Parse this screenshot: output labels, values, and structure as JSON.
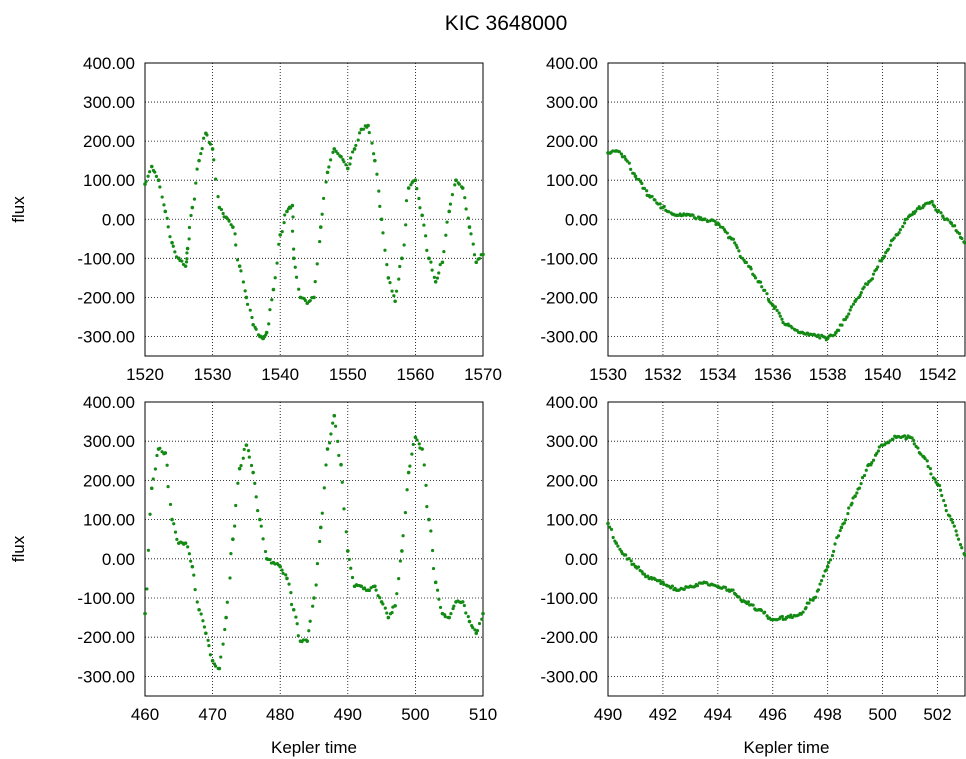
{
  "title": "KIC 3648000",
  "colors": {
    "series": "#138a13",
    "axis": "#000000",
    "background": "#ffffff"
  },
  "chart_data": [
    {
      "type": "scatter",
      "panel": "top-left",
      "xlabel": "",
      "ylabel": "flux",
      "xlim": [
        1520,
        1570
      ],
      "ylim": [
        -350,
        400
      ],
      "grid": true,
      "xticks": [
        1520,
        1530,
        1540,
        1550,
        1560,
        1570
      ],
      "xtick_labels": [
        "1520",
        "1530",
        "1540",
        "1550",
        "1560",
        "1570"
      ],
      "yticks": [
        -300,
        -200,
        -100,
        0,
        100,
        200,
        300,
        400
      ],
      "ytick_labels": [
        "-300.00",
        "-200.00",
        "-100.00",
        "0.00",
        "100.00",
        "200.00",
        "300.00",
        "400.00"
      ],
      "series": [
        {
          "color": "#138a13",
          "x": [
            1520,
            1521,
            1522,
            1523,
            1524,
            1525,
            1526,
            1526.3,
            1527,
            1528,
            1529,
            1530,
            1531,
            1532,
            1533,
            1534,
            1535,
            1536,
            1537,
            1537.5,
            1538,
            1539,
            1540,
            1541,
            1541.8,
            1542,
            1543,
            1544,
            1545,
            1546,
            1547,
            1548,
            1549,
            1550,
            1551,
            1552,
            1553,
            1554,
            1555,
            1556,
            1557,
            1558,
            1559,
            1560,
            1561,
            1562,
            1563,
            1564,
            1565,
            1566,
            1567,
            1568,
            1569,
            1570
          ],
          "y": [
            90,
            135,
            100,
            20,
            -60,
            -100,
            -120,
            -75,
            30,
            150,
            220,
            180,
            30,
            5,
            -20,
            -120,
            -200,
            -270,
            -300,
            -305,
            -290,
            -180,
            -40,
            20,
            35,
            -100,
            -200,
            -215,
            -200,
            -20,
            120,
            180,
            160,
            130,
            180,
            230,
            240,
            150,
            0,
            -150,
            -210,
            -100,
            80,
            100,
            10,
            -100,
            -160,
            -110,
            20,
            100,
            80,
            -20,
            -110,
            -90
          ]
        }
      ]
    },
    {
      "type": "scatter",
      "panel": "top-right",
      "xlabel": "",
      "ylabel": "",
      "xlim": [
        1530,
        1543
      ],
      "ylim": [
        -350,
        400
      ],
      "grid": true,
      "xticks": [
        1530,
        1532,
        1534,
        1536,
        1538,
        1540,
        1542
      ],
      "xtick_labels": [
        "1530",
        "1532",
        "1534",
        "1536",
        "1538",
        "1540",
        "1542"
      ],
      "yticks": [
        -300,
        -200,
        -100,
        0,
        100,
        200,
        300,
        400
      ],
      "ytick_labels": [
        "-300.00",
        "-200.00",
        "-100.00",
        "0.00",
        "100.00",
        "200.00",
        "300.00",
        "400.00"
      ],
      "series": [
        {
          "color": "#138a13",
          "x": [
            1530,
            1530.3,
            1530.6,
            1531,
            1531.5,
            1532,
            1532.5,
            1533,
            1533.5,
            1534,
            1534.5,
            1535,
            1535.5,
            1536,
            1536.5,
            1537,
            1537.5,
            1538,
            1538.3,
            1538.7,
            1539,
            1539.5,
            1540,
            1540.5,
            1541,
            1541.5,
            1541.8,
            1542,
            1542.5,
            1543
          ],
          "y": [
            170,
            175,
            160,
            110,
            60,
            30,
            10,
            10,
            0,
            -10,
            -50,
            -110,
            -160,
            -220,
            -270,
            -290,
            -295,
            -305,
            -290,
            -250,
            -210,
            -160,
            -100,
            -40,
            10,
            35,
            45,
            20,
            -10,
            -60
          ]
        }
      ]
    },
    {
      "type": "scatter",
      "panel": "bottom-left",
      "xlabel": "Kepler time",
      "ylabel": "flux",
      "xlim": [
        460,
        510
      ],
      "ylim": [
        -350,
        400
      ],
      "grid": true,
      "xticks": [
        460,
        470,
        480,
        490,
        500,
        510
      ],
      "xtick_labels": [
        "460",
        "470",
        "480",
        "490",
        "500",
        "510"
      ],
      "yticks": [
        -300,
        -200,
        -100,
        0,
        100,
        200,
        300,
        400
      ],
      "ytick_labels": [
        "-300.00",
        "-200.00",
        "-100.00",
        "0.00",
        "100.00",
        "200.00",
        "300.00",
        "400.00"
      ],
      "series": [
        {
          "color": "#138a13",
          "x": [
            460,
            461,
            462,
            463,
            464,
            465,
            466,
            467,
            468,
            469,
            470,
            471,
            472,
            473,
            474,
            475,
            476,
            477,
            478,
            479,
            480,
            481,
            482,
            483,
            484,
            485,
            486,
            487,
            488,
            489,
            490,
            491,
            492,
            493,
            494,
            495,
            496,
            497,
            498,
            499,
            500,
            501,
            502,
            503,
            504,
            505,
            506,
            507,
            508,
            509,
            510
          ],
          "y": [
            -140,
            180,
            280,
            270,
            100,
            40,
            40,
            -20,
            -130,
            -190,
            -260,
            -280,
            -150,
            50,
            230,
            290,
            220,
            100,
            0,
            -10,
            -20,
            -50,
            -130,
            -210,
            -210,
            -100,
            80,
            280,
            365,
            240,
            20,
            -70,
            -70,
            -80,
            -70,
            -110,
            -150,
            -120,
            20,
            220,
            310,
            280,
            100,
            -60,
            -140,
            -150,
            -110,
            -110,
            -160,
            -190,
            -140
          ]
        }
      ]
    },
    {
      "type": "scatter",
      "panel": "bottom-right",
      "xlabel": "Kepler time",
      "ylabel": "",
      "xlim": [
        490,
        503
      ],
      "ylim": [
        -350,
        400
      ],
      "grid": true,
      "xticks": [
        490,
        492,
        494,
        496,
        498,
        500,
        502
      ],
      "xtick_labels": [
        "490",
        "492",
        "494",
        "496",
        "498",
        "500",
        "502"
      ],
      "yticks": [
        -300,
        -200,
        -100,
        0,
        100,
        200,
        300,
        400
      ],
      "ytick_labels": [
        "-300.00",
        "-200.00",
        "-100.00",
        "0.00",
        "100.00",
        "200.00",
        "300.00",
        "400.00"
      ],
      "series": [
        {
          "color": "#138a13",
          "x": [
            490,
            490.3,
            490.6,
            491,
            491.5,
            492,
            492.5,
            493,
            493.5,
            494,
            494.5,
            495,
            495.5,
            496,
            496.5,
            497,
            497.5,
            498,
            498.5,
            499,
            499.5,
            500,
            500.5,
            501,
            501.5,
            502,
            502.5,
            503
          ],
          "y": [
            90,
            40,
            10,
            -20,
            -50,
            -60,
            -80,
            -70,
            -60,
            -70,
            -80,
            -110,
            -130,
            -155,
            -150,
            -140,
            -100,
            -20,
            80,
            160,
            240,
            290,
            310,
            310,
            260,
            190,
            100,
            10
          ]
        }
      ]
    }
  ]
}
